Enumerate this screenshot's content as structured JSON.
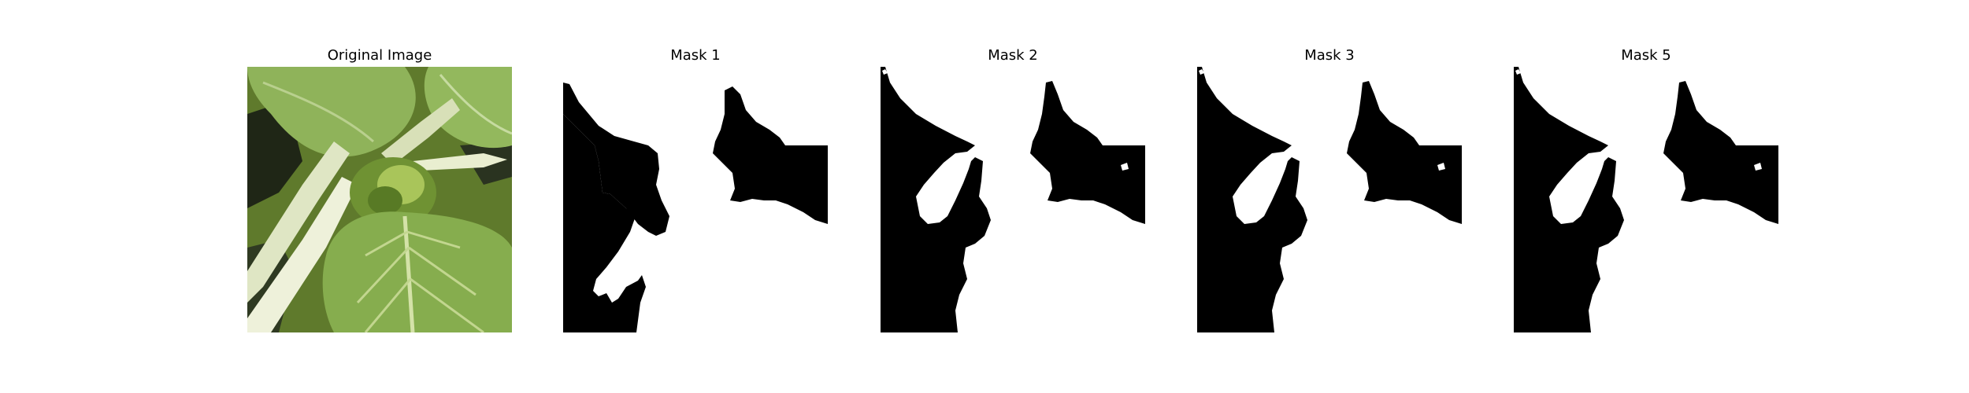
{
  "figure": {
    "panels": [
      {
        "title": "Original Image"
      },
      {
        "title": "Mask 1"
      },
      {
        "title": "Mask 2"
      },
      {
        "title": "Mask 3"
      },
      {
        "title": "Mask 5"
      }
    ]
  }
}
